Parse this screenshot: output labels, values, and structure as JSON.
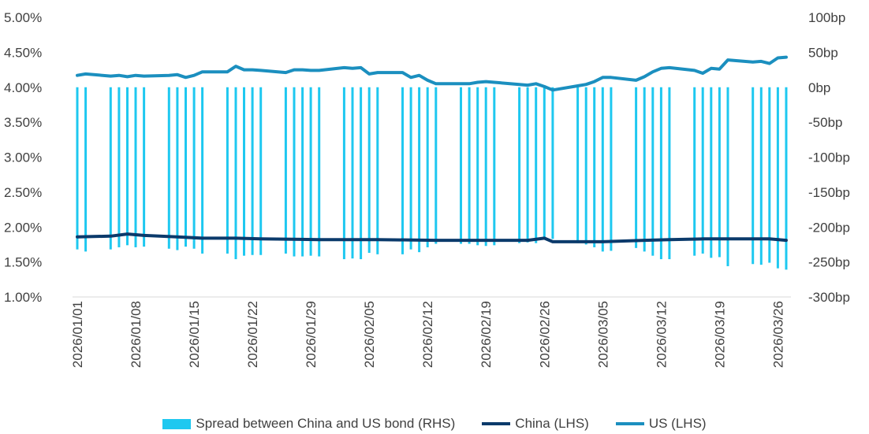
{
  "chart_data": {
    "type": "bar+line",
    "title": "",
    "y_left": {
      "min": 1.0,
      "max": 5.0,
      "ticks": [
        "1.00%",
        "1.50%",
        "2.00%",
        "2.50%",
        "3.00%",
        "3.50%",
        "4.00%",
        "4.50%",
        "5.00%"
      ]
    },
    "y_right": {
      "min": -300,
      "max": 100,
      "ticks": [
        "-300bp",
        "-250bp",
        "-200bp",
        "-150bp",
        "-100bp",
        "-50bp",
        "0bp",
        "50bp",
        "100bp"
      ]
    },
    "x_tick_labels": [
      "2026/01/01",
      "2026/01/08",
      "2026/01/15",
      "2026/01/22",
      "2026/01/29",
      "2026/02/05",
      "2026/02/12",
      "2026/02/19",
      "2026/02/26",
      "2026/03/05",
      "2026/03/12",
      "2026/03/19",
      "2026/03/26"
    ],
    "x_range": {
      "start": "2026/01/01",
      "end": "2026/03/27"
    },
    "grid": false,
    "legend_position": "bottom",
    "legend": [
      "Spread between China and US bond (RHS)",
      "China (LHS)",
      "US (LHS)"
    ],
    "colors": {
      "spread": "#1ec8f0",
      "china": "#0b3a6b",
      "us": "#1b8fbf",
      "text": "#404040"
    },
    "series": [
      {
        "name": "US (LHS)",
        "type": "line",
        "axis": "left",
        "points": [
          [
            "2026/01/01",
            4.17
          ],
          [
            "2026/01/02",
            4.19
          ],
          [
            "2026/01/05",
            4.16
          ],
          [
            "2026/01/06",
            4.17
          ],
          [
            "2026/01/07",
            4.15
          ],
          [
            "2026/01/08",
            4.17
          ],
          [
            "2026/01/09",
            4.16
          ],
          [
            "2026/01/12",
            4.17
          ],
          [
            "2026/01/13",
            4.18
          ],
          [
            "2026/01/14",
            4.14
          ],
          [
            "2026/01/15",
            4.17
          ],
          [
            "2026/01/16",
            4.22
          ],
          [
            "2026/01/19",
            4.22
          ],
          [
            "2026/01/20",
            4.3
          ],
          [
            "2026/01/21",
            4.25
          ],
          [
            "2026/01/22",
            4.25
          ],
          [
            "2026/01/23",
            4.24
          ],
          [
            "2026/01/26",
            4.21
          ],
          [
            "2026/01/27",
            4.25
          ],
          [
            "2026/01/28",
            4.25
          ],
          [
            "2026/01/29",
            4.24
          ],
          [
            "2026/01/30",
            4.24
          ],
          [
            "2026/02/02",
            4.28
          ],
          [
            "2026/02/03",
            4.27
          ],
          [
            "2026/02/04",
            4.28
          ],
          [
            "2026/02/05",
            4.19
          ],
          [
            "2026/02/06",
            4.21
          ],
          [
            "2026/02/09",
            4.21
          ],
          [
            "2026/02/10",
            4.14
          ],
          [
            "2026/02/11",
            4.17
          ],
          [
            "2026/02/12",
            4.1
          ],
          [
            "2026/02/13",
            4.05
          ],
          [
            "2026/02/16",
            4.05
          ],
          [
            "2026/02/17",
            4.05
          ],
          [
            "2026/02/18",
            4.07
          ],
          [
            "2026/02/19",
            4.08
          ],
          [
            "2026/02/20",
            4.07
          ],
          [
            "2026/02/23",
            4.04
          ],
          [
            "2026/02/24",
            4.03
          ],
          [
            "2026/02/25",
            4.05
          ],
          [
            "2026/02/26",
            4.01
          ],
          [
            "2026/02/27",
            3.96
          ],
          [
            "2026/03/02",
            4.02
          ],
          [
            "2026/03/03",
            4.04
          ],
          [
            "2026/03/04",
            4.08
          ],
          [
            "2026/03/05",
            4.14
          ],
          [
            "2026/03/06",
            4.14
          ],
          [
            "2026/03/09",
            4.1
          ],
          [
            "2026/03/10",
            4.15
          ],
          [
            "2026/03/11",
            4.22
          ],
          [
            "2026/03/12",
            4.27
          ],
          [
            "2026/03/13",
            4.28
          ],
          [
            "2026/03/16",
            4.24
          ],
          [
            "2026/03/17",
            4.2
          ],
          [
            "2026/03/18",
            4.27
          ],
          [
            "2026/03/19",
            4.26
          ],
          [
            "2026/03/20",
            4.39
          ],
          [
            "2026/03/23",
            4.36
          ],
          [
            "2026/03/24",
            4.37
          ],
          [
            "2026/03/25",
            4.34
          ],
          [
            "2026/03/26",
            4.42
          ],
          [
            "2026/03/27",
            4.43
          ]
        ]
      },
      {
        "name": "China (LHS)",
        "type": "line",
        "axis": "left",
        "points": [
          [
            "2026/01/01",
            1.86
          ],
          [
            "2026/01/05",
            1.87
          ],
          [
            "2026/01/07",
            1.9
          ],
          [
            "2026/01/09",
            1.88
          ],
          [
            "2026/01/13",
            1.86
          ],
          [
            "2026/01/16",
            1.84
          ],
          [
            "2026/01/20",
            1.84
          ],
          [
            "2026/01/23",
            1.83
          ],
          [
            "2026/01/30",
            1.82
          ],
          [
            "2026/02/06",
            1.82
          ],
          [
            "2026/02/13",
            1.81
          ],
          [
            "2026/02/20",
            1.81
          ],
          [
            "2026/02/24",
            1.81
          ],
          [
            "2026/02/26",
            1.84
          ],
          [
            "2026/02/27",
            1.79
          ],
          [
            "2026/03/05",
            1.79
          ],
          [
            "2026/03/10",
            1.81
          ],
          [
            "2026/03/13",
            1.82
          ],
          [
            "2026/03/17",
            1.83
          ],
          [
            "2026/03/20",
            1.83
          ],
          [
            "2026/03/25",
            1.83
          ],
          [
            "2026/03/27",
            1.81
          ]
        ]
      },
      {
        "name": "Spread between China and US bond (RHS)",
        "type": "bar",
        "axis": "right",
        "points": [
          [
            "2026/01/01",
            -232
          ],
          [
            "2026/01/02",
            -235
          ],
          [
            "2026/01/05",
            -232
          ],
          [
            "2026/01/06",
            -229
          ],
          [
            "2026/01/07",
            -226
          ],
          [
            "2026/01/08",
            -229
          ],
          [
            "2026/01/09",
            -228
          ],
          [
            "2026/01/12",
            -231
          ],
          [
            "2026/01/13",
            -233
          ],
          [
            "2026/01/14",
            -228
          ],
          [
            "2026/01/15",
            -231
          ],
          [
            "2026/01/16",
            -238
          ],
          [
            "2026/01/19",
            -238
          ],
          [
            "2026/01/20",
            -246
          ],
          [
            "2026/01/21",
            -241
          ],
          [
            "2026/01/22",
            -240
          ],
          [
            "2026/01/23",
            -240
          ],
          [
            "2026/01/26",
            -238
          ],
          [
            "2026/01/27",
            -242
          ],
          [
            "2026/01/28",
            -242
          ],
          [
            "2026/01/29",
            -241
          ],
          [
            "2026/01/30",
            -242
          ],
          [
            "2026/02/02",
            -246
          ],
          [
            "2026/02/03",
            -245
          ],
          [
            "2026/02/04",
            -246
          ],
          [
            "2026/02/05",
            -237
          ],
          [
            "2026/02/06",
            -239
          ],
          [
            "2026/02/09",
            -239
          ],
          [
            "2026/02/10",
            -232
          ],
          [
            "2026/02/11",
            -236
          ],
          [
            "2026/02/12",
            -229
          ],
          [
            "2026/02/13",
            -224
          ],
          [
            "2026/02/16",
            -224
          ],
          [
            "2026/02/17",
            -224
          ],
          [
            "2026/02/18",
            -226
          ],
          [
            "2026/02/19",
            -227
          ],
          [
            "2026/02/20",
            -226
          ],
          [
            "2026/02/23",
            -223
          ],
          [
            "2026/02/24",
            -222
          ],
          [
            "2026/02/25",
            -223
          ],
          [
            "2026/02/26",
            -217
          ],
          [
            "2026/02/27",
            -217
          ],
          [
            "2026/03/02",
            -223
          ],
          [
            "2026/03/03",
            -225
          ],
          [
            "2026/03/04",
            -229
          ],
          [
            "2026/03/05",
            -235
          ],
          [
            "2026/03/06",
            -234
          ],
          [
            "2026/03/09",
            -230
          ],
          [
            "2026/03/10",
            -235
          ],
          [
            "2026/03/11",
            -241
          ],
          [
            "2026/03/12",
            -246
          ],
          [
            "2026/03/13",
            -246
          ],
          [
            "2026/03/16",
            -241
          ],
          [
            "2026/03/17",
            -238
          ],
          [
            "2026/03/18",
            -244
          ],
          [
            "2026/03/19",
            -243
          ],
          [
            "2026/03/20",
            -256
          ],
          [
            "2026/03/23",
            -253
          ],
          [
            "2026/03/24",
            -254
          ],
          [
            "2026/03/25",
            -251
          ],
          [
            "2026/03/26",
            -259
          ],
          [
            "2026/03/27",
            -261
          ]
        ]
      }
    ]
  }
}
